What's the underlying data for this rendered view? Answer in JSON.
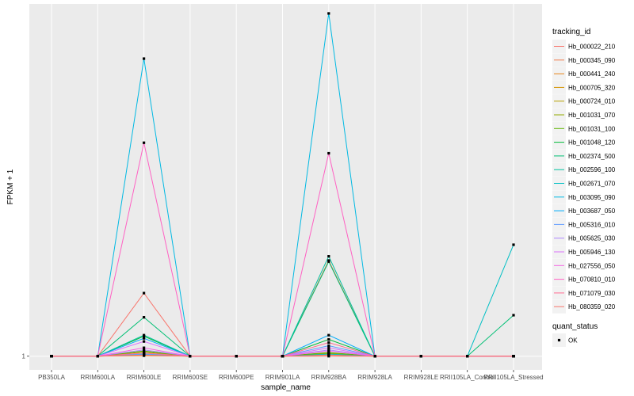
{
  "chart_data": {
    "type": "line",
    "xlabel": "sample_name",
    "ylabel": "FPKM + 1",
    "y_ticks": [
      1
    ],
    "ylim": [
      -0.3,
      34.5
    ],
    "grid": true,
    "categories": [
      "PB350LA",
      "RRIM600LA",
      "RRIM600LE",
      "RRIM600SE",
      "RRIM600PE",
      "RRIM901LA",
      "RRIM928BA",
      "RRIM928LA",
      "RRIM928LE",
      "RRII105LA_Control",
      "RRII105LA_Stressed"
    ],
    "legend_position": "right",
    "color_legend_title": "tracking_id",
    "shape_legend_title": "quant_status",
    "shape_legend_items": [
      {
        "label": "OK",
        "color": "#000000"
      }
    ],
    "series": [
      {
        "name": "Hb_000022_210",
        "color": "#F8766D",
        "values": [
          1,
          1,
          7.0,
          1,
          1,
          1,
          1,
          1,
          1,
          1,
          1
        ]
      },
      {
        "name": "Hb_000345_090",
        "color": "#F07E4E",
        "values": [
          1,
          1,
          1.1,
          1,
          1,
          1,
          10.1,
          1,
          1,
          1,
          1
        ]
      },
      {
        "name": "Hb_000441_240",
        "color": "#E7861B",
        "values": [
          1,
          1,
          1.05,
          1,
          1,
          1,
          1.1,
          1,
          1,
          1,
          1
        ]
      },
      {
        "name": "Hb_000705_320",
        "color": "#D39200",
        "values": [
          1,
          1,
          1.15,
          1,
          1,
          1,
          1.2,
          1,
          1,
          1,
          1
        ]
      },
      {
        "name": "Hb_000724_010",
        "color": "#B79F00",
        "values": [
          1,
          1,
          1.3,
          1,
          1,
          1,
          1.25,
          1,
          1,
          1,
          1
        ]
      },
      {
        "name": "Hb_001031_070",
        "color": "#93AA00",
        "values": [
          1,
          1,
          1.4,
          1,
          1,
          1,
          1.3,
          1,
          1,
          1,
          1
        ]
      },
      {
        "name": "Hb_001031_100",
        "color": "#5EB300",
        "values": [
          1,
          1,
          1.5,
          1,
          1,
          1,
          1.35,
          1,
          1,
          1,
          1
        ]
      },
      {
        "name": "Hb_001048_120",
        "color": "#00BA38",
        "values": [
          1,
          1,
          2.9,
          1,
          1,
          1,
          2.6,
          1,
          1,
          1,
          1
        ]
      },
      {
        "name": "Hb_002374_500",
        "color": "#00BF74",
        "values": [
          1,
          1,
          4.7,
          1,
          1,
          1,
          10.0,
          1,
          1,
          1,
          4.9
        ]
      },
      {
        "name": "Hb_002596_100",
        "color": "#00C19F",
        "values": [
          1,
          1,
          3.0,
          1,
          1,
          1,
          10.5,
          1,
          1,
          1,
          1
        ]
      },
      {
        "name": "Hb_002671_070",
        "color": "#00BFC4",
        "values": [
          1,
          1,
          1.2,
          1,
          1,
          1,
          1.2,
          1,
          1,
          1,
          11.6
        ]
      },
      {
        "name": "Hb_003095_090",
        "color": "#00B9E3",
        "values": [
          1,
          1,
          29.3,
          1,
          1,
          1,
          33.6,
          1,
          1,
          1,
          1
        ]
      },
      {
        "name": "Hb_003687_050",
        "color": "#00ADFA",
        "values": [
          1,
          1,
          2.7,
          1,
          1,
          1,
          3.0,
          1,
          1,
          1,
          1
        ]
      },
      {
        "name": "Hb_005316_010",
        "color": "#619CFF",
        "values": [
          1,
          1,
          1.2,
          1,
          1,
          1,
          2.0,
          1,
          1,
          1,
          1
        ]
      },
      {
        "name": "Hb_005625_030",
        "color": "#AE87FF",
        "values": [
          1,
          1,
          1.6,
          1,
          1,
          1,
          1.6,
          1,
          1,
          1,
          1
        ]
      },
      {
        "name": "Hb_005946_130",
        "color": "#DB72FB",
        "values": [
          1,
          1,
          2.4,
          1,
          1,
          1,
          1.8,
          1,
          1,
          1,
          1
        ]
      },
      {
        "name": "Hb_027556_050",
        "color": "#F564E3",
        "values": [
          1,
          1,
          1.8,
          1,
          1,
          1,
          1.5,
          1,
          1,
          1,
          1
        ]
      },
      {
        "name": "Hb_070810_010",
        "color": "#FF61C3",
        "values": [
          1,
          1,
          21.3,
          1,
          1,
          1,
          20.3,
          1,
          1,
          1,
          1
        ]
      },
      {
        "name": "Hb_071079_030",
        "color": "#FF6C91",
        "values": [
          1,
          1,
          1.3,
          1,
          1,
          1,
          2.3,
          1,
          1,
          1,
          1
        ]
      },
      {
        "name": "Hb_080359_020",
        "color": "#F8766D",
        "values": [
          1,
          1,
          1.1,
          1,
          1,
          1,
          1.1,
          1,
          1,
          1,
          1
        ]
      }
    ]
  }
}
